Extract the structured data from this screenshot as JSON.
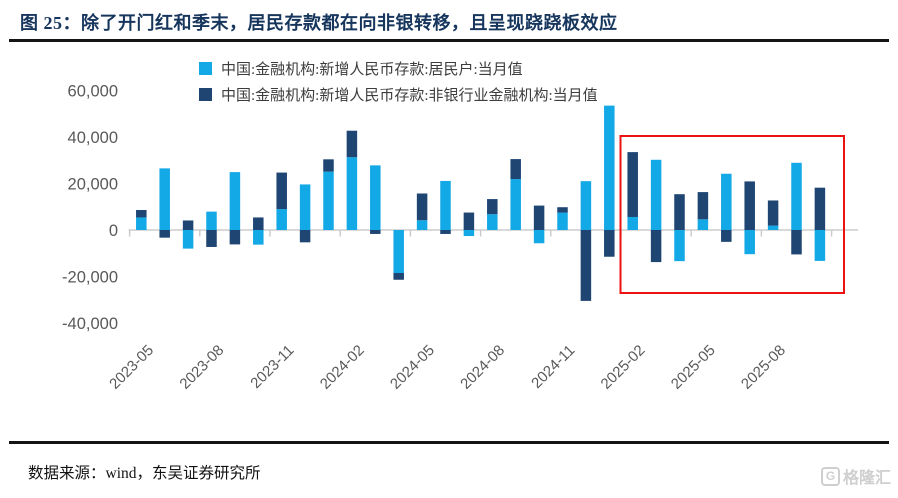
{
  "figure": {
    "title": "图 25：除了开门红和季末，居民存款都在向非银转移，且呈现跷跷板效应",
    "source": "数据来源：wind，东吴证券研究所",
    "watermark": {
      "icon_letter": "G",
      "text": "格隆汇"
    }
  },
  "colors": {
    "household_blue": "#13A8E6",
    "nonbank_navy": "#1F4573",
    "title_navy": "#17365D",
    "rule_black": "#141414",
    "axis_gray": "#595959",
    "zero_line_gray": "#D9D9D9",
    "highlight_red": "#EE1111"
  },
  "chart_data": {
    "type": "bar",
    "stacked": true,
    "grid": false,
    "legend_position": "top",
    "x": [
      "2023-05",
      "2023-06",
      "2023-07",
      "2023-08",
      "2023-09",
      "2023-10",
      "2023-11",
      "2023-12",
      "2024-01",
      "2024-02",
      "2024-03",
      "2024-04",
      "2024-05",
      "2024-06",
      "2024-07",
      "2024-08",
      "2024-09",
      "2024-10",
      "2024-11",
      "2024-12",
      "2025-01",
      "2025-02",
      "2025-03",
      "2025-04",
      "2025-05",
      "2025-06",
      "2025-07",
      "2025-08",
      "2025-09",
      "2025-10"
    ],
    "x_tick_labels": [
      "2023-05",
      "2023-08",
      "2023-11",
      "2024-02",
      "2024-05",
      "2024-08",
      "2024-11",
      "2025-02",
      "2025-05",
      "2025-08"
    ],
    "y_ticks": [
      60000,
      40000,
      20000,
      0,
      -20000,
      -40000
    ],
    "ylim": [
      -45000,
      65000
    ],
    "series": [
      {
        "name": "中国:金融机构:新增人民币存款:居民户:当月值",
        "color": "#13A8E6",
        "values": [
          5400,
          26500,
          -8000,
          7900,
          24900,
          -6300,
          9000,
          19600,
          25100,
          31300,
          27800,
          -18500,
          4200,
          21100,
          -2600,
          6800,
          21900,
          -5700,
          7500,
          21000,
          53500,
          5600,
          30200,
          -13400,
          4600,
          24200,
          -10400,
          1900,
          28900,
          -13300
        ]
      },
      {
        "name": "中国:金融机构:新增人民币存款:非银行业金融机构:当月值",
        "color": "#1F4573",
        "values": [
          3200,
          -3300,
          4100,
          -7300,
          -6200,
          5400,
          15700,
          -5300,
          5300,
          11400,
          -1700,
          -2900,
          11500,
          -1700,
          7500,
          6500,
          8600,
          10500,
          2300,
          -30500,
          -11500,
          27900,
          -13800,
          15400,
          11700,
          -5100,
          20900,
          10800,
          -10500,
          18200
        ]
      }
    ],
    "highlight_box": {
      "from": "2025-02",
      "to": "2025-10"
    }
  }
}
